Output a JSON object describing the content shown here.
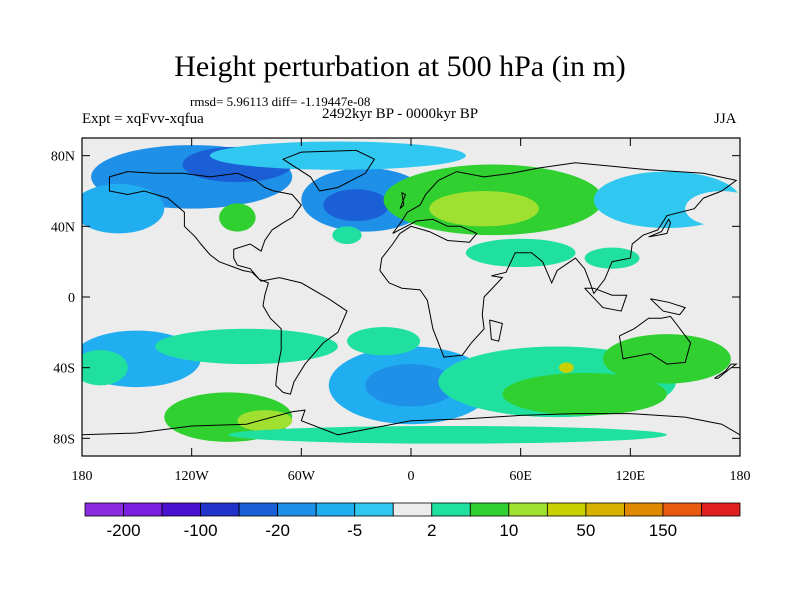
{
  "title": "Height perturbation at 500 hPa (in m)",
  "stats_text": "rmsd= 5.96113 diff= -1.19447e-08",
  "left_label": "Expt = xqFvv-xqfua",
  "center_label": "2492kyr BP - 0000kyr BP",
  "right_label": "JJA",
  "map": {
    "projection": "cylindrical-equidistant",
    "lon_range": [
      -180,
      180
    ],
    "lat_range": [
      -90,
      90
    ],
    "lon_ticks": [
      {
        "value": -180,
        "label": "180"
      },
      {
        "value": -120,
        "label": "120W"
      },
      {
        "value": -60,
        "label": "60W"
      },
      {
        "value": 0,
        "label": "0"
      },
      {
        "value": 60,
        "label": "60E"
      },
      {
        "value": 120,
        "label": "120E"
      },
      {
        "value": 180,
        "label": "180"
      }
    ],
    "lat_ticks": [
      {
        "value": 80,
        "label": "80N"
      },
      {
        "value": 40,
        "label": "40N"
      },
      {
        "value": 0,
        "label": "0"
      },
      {
        "value": -40,
        "label": "40S"
      },
      {
        "value": -80,
        "label": "80S"
      }
    ],
    "field_regions": [
      {
        "lon": -120,
        "lat": 68,
        "rx": 55,
        "ry": 18,
        "level": 5
      },
      {
        "lon": -95,
        "lat": 75,
        "rx": 30,
        "ry": 10,
        "level": 4
      },
      {
        "lon": -25,
        "lat": 55,
        "rx": 35,
        "ry": 18,
        "level": 5
      },
      {
        "lon": -30,
        "lat": 52,
        "rx": 18,
        "ry": 9,
        "level": 4
      },
      {
        "lon": -160,
        "lat": 50,
        "rx": 25,
        "ry": 14,
        "level": 6
      },
      {
        "lon": -95,
        "lat": 45,
        "rx": 10,
        "ry": 8,
        "level": 10
      },
      {
        "lon": -35,
        "lat": 35,
        "rx": 8,
        "ry": 5,
        "level": 9
      },
      {
        "lon": 45,
        "lat": 55,
        "rx": 60,
        "ry": 20,
        "level": 10
      },
      {
        "lon": 40,
        "lat": 50,
        "rx": 30,
        "ry": 10,
        "level": 11
      },
      {
        "lon": 140,
        "lat": 55,
        "rx": 40,
        "ry": 16,
        "level": 7
      },
      {
        "lon": 170,
        "lat": 50,
        "rx": 20,
        "ry": 10,
        "level": 8
      },
      {
        "lon": -40,
        "lat": 80,
        "rx": 70,
        "ry": 8,
        "level": 7
      },
      {
        "lon": 60,
        "lat": 25,
        "rx": 30,
        "ry": 8,
        "level": 9
      },
      {
        "lon": 110,
        "lat": 22,
        "rx": 15,
        "ry": 6,
        "level": 9
      },
      {
        "lon": -150,
        "lat": -35,
        "rx": 35,
        "ry": 16,
        "level": 6
      },
      {
        "lon": -170,
        "lat": -40,
        "rx": 15,
        "ry": 10,
        "level": 9
      },
      {
        "lon": -90,
        "lat": -28,
        "rx": 50,
        "ry": 10,
        "level": 9
      },
      {
        "lon": -100,
        "lat": -68,
        "rx": 35,
        "ry": 14,
        "level": 10
      },
      {
        "lon": -80,
        "lat": -70,
        "rx": 15,
        "ry": 6,
        "level": 11
      },
      {
        "lon": 0,
        "lat": -50,
        "rx": 45,
        "ry": 22,
        "level": 6
      },
      {
        "lon": 0,
        "lat": -50,
        "rx": 25,
        "ry": 12,
        "level": 5
      },
      {
        "lon": 80,
        "lat": -48,
        "rx": 65,
        "ry": 20,
        "level": 9
      },
      {
        "lon": 140,
        "lat": -35,
        "rx": 35,
        "ry": 14,
        "level": 10
      },
      {
        "lon": 95,
        "lat": -55,
        "rx": 45,
        "ry": 12,
        "level": 10
      },
      {
        "lon": 85,
        "lat": -40,
        "rx": 4,
        "ry": 3,
        "level": 12
      },
      {
        "lon": -15,
        "lat": -25,
        "rx": 20,
        "ry": 8,
        "level": 9
      },
      {
        "lon": 20,
        "lat": -78,
        "rx": 120,
        "ry": 5,
        "level": 9
      }
    ]
  },
  "colorbar": {
    "colors": [
      "#8a2be2",
      "#7a1fe0",
      "#4b10d0",
      "#2233cc",
      "#1a5fd6",
      "#1e90e8",
      "#20aef0",
      "#30c8f0",
      "#ececec",
      "#20e0a0",
      "#30d030",
      "#a0e030",
      "#c8d000",
      "#d8b000",
      "#e08800",
      "#e85a10",
      "#e02020"
    ],
    "labels": [
      {
        "index": 1,
        "text": "-200"
      },
      {
        "index": 3,
        "text": "-100"
      },
      {
        "index": 5,
        "text": "-20"
      },
      {
        "index": 7,
        "text": "-5"
      },
      {
        "index": 9,
        "text": "2"
      },
      {
        "index": 11,
        "text": "10"
      },
      {
        "index": 13,
        "text": "50"
      },
      {
        "index": 15,
        "text": "150"
      }
    ]
  }
}
